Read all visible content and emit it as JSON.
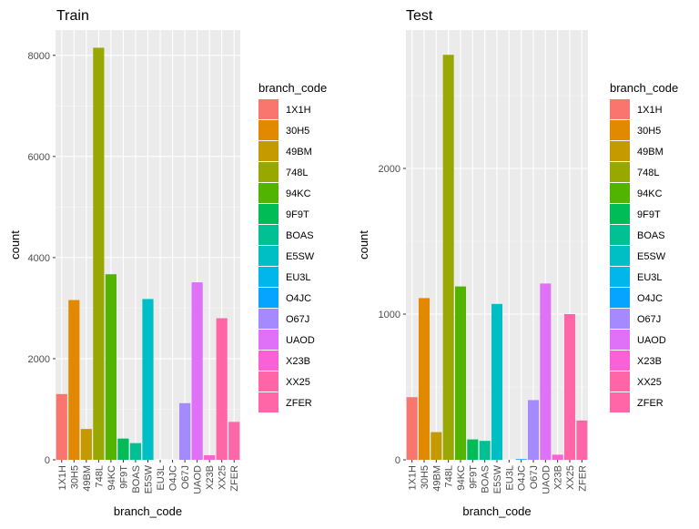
{
  "chart_data": [
    {
      "type": "bar",
      "title": "Train",
      "xlabel": "branch_code",
      "ylabel": "count",
      "ylim": [
        0,
        8500
      ],
      "yticks": [
        0,
        2000,
        4000,
        6000,
        8000
      ],
      "grid": true,
      "legend": {
        "title": "branch_code",
        "placement": "right"
      },
      "categories": [
        "1X1H",
        "30H5",
        "49BM",
        "748L",
        "94KC",
        "9F9T",
        "BOAS",
        "E5SW",
        "EU3L",
        "O4JC",
        "O67J",
        "UAOD",
        "X23B",
        "XX25",
        "ZFER"
      ],
      "values": [
        1300,
        3160,
        610,
        8150,
        3670,
        420,
        330,
        3180,
        0,
        0,
        1120,
        3510,
        90,
        2800,
        750
      ]
    },
    {
      "type": "bar",
      "title": "Test",
      "xlabel": "branch_code",
      "ylabel": "count",
      "ylim": [
        0,
        2950
      ],
      "yticks": [
        0,
        1000,
        2000
      ],
      "grid": true,
      "legend": {
        "title": "branch_code",
        "placement": "right"
      },
      "categories": [
        "1X1H",
        "30H5",
        "49BM",
        "748L",
        "94KC",
        "9F9T",
        "BOAS",
        "E5SW",
        "EU3L",
        "O4JC",
        "O67J",
        "UAOD",
        "X23B",
        "XX25",
        "ZFER"
      ],
      "values": [
        430,
        1110,
        190,
        2780,
        1190,
        140,
        130,
        1070,
        0,
        5,
        410,
        1210,
        35,
        1000,
        270
      ]
    }
  ],
  "colors": [
    "#F8766D",
    "#E38900",
    "#C49A00",
    "#99A800",
    "#53B400",
    "#00BC56",
    "#00C094",
    "#00BFC4",
    "#00B6EB",
    "#06A4FF",
    "#A58AFF",
    "#DF70F8",
    "#FB61D7",
    "#FF66A8",
    "#FF66A8"
  ]
}
